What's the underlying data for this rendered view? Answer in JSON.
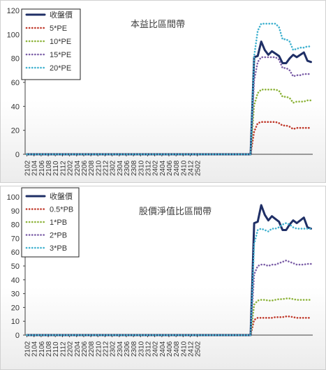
{
  "chart_data": [
    {
      "type": "line",
      "title": "本益比區間帶",
      "xlabel": "",
      "ylabel": "",
      "x_tick_labels": [
        "2102",
        "2104",
        "2106",
        "2108",
        "2110",
        "2112",
        "2202",
        "2204",
        "2206",
        "2208",
        "2210",
        "2212",
        "2302",
        "2304",
        "2306",
        "2308",
        "2310",
        "2312",
        "2402",
        "2404",
        "2406",
        "2408",
        "2410",
        "2412",
        "2502"
      ],
      "ylim": [
        0,
        120
      ],
      "yticks": [
        0,
        20,
        40,
        60,
        80,
        100,
        120
      ],
      "legend_position": "top-left",
      "grid": false,
      "series": [
        {
          "name": "收盤價",
          "color": "#1f2f66",
          "style": "solid",
          "values": [
            0,
            0,
            0,
            0,
            0,
            0,
            0,
            0,
            0,
            0,
            0,
            0,
            0,
            0,
            0,
            0,
            0,
            0,
            0,
            0,
            0,
            0,
            0,
            0,
            0,
            0,
            0,
            0,
            0,
            0,
            0,
            0,
            0,
            0,
            0,
            0,
            0,
            0,
            0,
            0,
            0,
            0,
            0,
            0,
            0,
            0,
            0,
            0,
            0,
            0,
            0,
            0,
            0,
            0,
            0,
            0,
            0,
            0,
            0,
            0,
            0,
            0,
            0,
            0,
            81,
            82,
            94,
            87,
            83,
            86,
            84,
            82,
            76,
            76,
            80,
            83,
            81,
            83,
            85,
            78,
            77
          ]
        },
        {
          "name": "5*PE",
          "color": "#c0392b",
          "style": "dotted",
          "values": [
            0,
            0,
            0,
            0,
            0,
            0,
            0,
            0,
            0,
            0,
            0,
            0,
            0,
            0,
            0,
            0,
            0,
            0,
            0,
            0,
            0,
            0,
            0,
            0,
            0,
            0,
            0,
            0,
            0,
            0,
            0,
            0,
            0,
            0,
            0,
            0,
            0,
            0,
            0,
            0,
            0,
            0,
            0,
            0,
            0,
            0,
            0,
            0,
            0,
            0,
            0,
            0,
            0,
            0,
            0,
            0,
            0,
            0,
            0,
            0,
            0,
            0,
            0,
            0,
            19,
            26,
            27,
            27,
            27,
            27,
            27,
            26,
            24,
            24,
            23,
            21,
            22,
            22,
            22,
            22,
            22
          ]
        },
        {
          "name": "10*PE",
          "color": "#8db33a",
          "style": "dotted",
          "values": [
            0,
            0,
            0,
            0,
            0,
            0,
            0,
            0,
            0,
            0,
            0,
            0,
            0,
            0,
            0,
            0,
            0,
            0,
            0,
            0,
            0,
            0,
            0,
            0,
            0,
            0,
            0,
            0,
            0,
            0,
            0,
            0,
            0,
            0,
            0,
            0,
            0,
            0,
            0,
            0,
            0,
            0,
            0,
            0,
            0,
            0,
            0,
            0,
            0,
            0,
            0,
            0,
            0,
            0,
            0,
            0,
            0,
            0,
            0,
            0,
            0,
            0,
            0,
            0,
            41,
            51,
            54,
            54,
            54,
            54,
            54,
            53,
            48,
            48,
            47,
            43,
            44,
            44,
            44,
            45,
            45
          ]
        },
        {
          "name": "15*PE",
          "color": "#7b5ea7",
          "style": "dotted",
          "values": [
            0,
            0,
            0,
            0,
            0,
            0,
            0,
            0,
            0,
            0,
            0,
            0,
            0,
            0,
            0,
            0,
            0,
            0,
            0,
            0,
            0,
            0,
            0,
            0,
            0,
            0,
            0,
            0,
            0,
            0,
            0,
            0,
            0,
            0,
            0,
            0,
            0,
            0,
            0,
            0,
            0,
            0,
            0,
            0,
            0,
            0,
            0,
            0,
            0,
            0,
            0,
            0,
            0,
            0,
            0,
            0,
            0,
            0,
            0,
            0,
            0,
            0,
            0,
            0,
            62,
            77,
            81,
            81,
            81,
            81,
            81,
            79,
            72,
            72,
            70,
            65,
            66,
            66,
            67,
            67,
            67
          ]
        },
        {
          "name": "20*PE",
          "color": "#3fb1cf",
          "style": "dotted",
          "values": [
            0,
            0,
            0,
            0,
            0,
            0,
            0,
            0,
            0,
            0,
            0,
            0,
            0,
            0,
            0,
            0,
            0,
            0,
            0,
            0,
            0,
            0,
            0,
            0,
            0,
            0,
            0,
            0,
            0,
            0,
            0,
            0,
            0,
            0,
            0,
            0,
            0,
            0,
            0,
            0,
            0,
            0,
            0,
            0,
            0,
            0,
            0,
            0,
            0,
            0,
            0,
            0,
            0,
            0,
            0,
            0,
            0,
            0,
            0,
            0,
            0,
            0,
            0,
            0,
            82,
            103,
            109,
            109,
            109,
            109,
            109,
            106,
            96,
            96,
            94,
            87,
            88,
            89,
            89,
            90,
            90
          ]
        }
      ]
    },
    {
      "type": "line",
      "title": "股價淨值比區間帶",
      "xlabel": "",
      "ylabel": "",
      "x_tick_labels": [
        "2102",
        "2104",
        "2106",
        "2108",
        "2110",
        "2112",
        "2202",
        "2204",
        "2206",
        "2208",
        "2210",
        "2212",
        "2302",
        "2304",
        "2306",
        "2308",
        "2310",
        "2312",
        "2402",
        "2404",
        "2406",
        "2408",
        "2410",
        "2412",
        "2502"
      ],
      "ylim": [
        0,
        100
      ],
      "yticks": [
        0,
        10,
        20,
        30,
        40,
        50,
        60,
        70,
        80,
        90,
        100
      ],
      "legend_position": "top-left",
      "grid": false,
      "series": [
        {
          "name": "收盤價",
          "color": "#1f2f66",
          "style": "solid",
          "values": [
            0,
            0,
            0,
            0,
            0,
            0,
            0,
            0,
            0,
            0,
            0,
            0,
            0,
            0,
            0,
            0,
            0,
            0,
            0,
            0,
            0,
            0,
            0,
            0,
            0,
            0,
            0,
            0,
            0,
            0,
            0,
            0,
            0,
            0,
            0,
            0,
            0,
            0,
            0,
            0,
            0,
            0,
            0,
            0,
            0,
            0,
            0,
            0,
            0,
            0,
            0,
            0,
            0,
            0,
            0,
            0,
            0,
            0,
            0,
            0,
            0,
            0,
            0,
            0,
            81,
            82,
            94,
            87,
            83,
            86,
            84,
            82,
            76,
            76,
            80,
            83,
            81,
            83,
            85,
            78,
            77
          ]
        },
        {
          "name": "0.5*PB",
          "color": "#c0392b",
          "style": "dotted",
          "values": [
            0,
            0,
            0,
            0,
            0,
            0,
            0,
            0,
            0,
            0,
            0,
            0,
            0,
            0,
            0,
            0,
            0,
            0,
            0,
            0,
            0,
            0,
            0,
            0,
            0,
            0,
            0,
            0,
            0,
            0,
            0,
            0,
            0,
            0,
            0,
            0,
            0,
            0,
            0,
            0,
            0,
            0,
            0,
            0,
            0,
            0,
            0,
            0,
            0,
            0,
            0,
            0,
            0,
            0,
            0,
            0,
            0,
            0,
            0,
            0,
            0,
            0,
            0,
            0,
            11,
            12.5,
            12.5,
            12.5,
            12.5,
            12.5,
            13,
            13,
            13,
            13.5,
            13.5,
            13,
            12.5,
            12.5,
            12.5,
            12.5,
            12.5
          ]
        },
        {
          "name": "1*PB",
          "color": "#8db33a",
          "style": "dotted",
          "values": [
            0,
            0,
            0,
            0,
            0,
            0,
            0,
            0,
            0,
            0,
            0,
            0,
            0,
            0,
            0,
            0,
            0,
            0,
            0,
            0,
            0,
            0,
            0,
            0,
            0,
            0,
            0,
            0,
            0,
            0,
            0,
            0,
            0,
            0,
            0,
            0,
            0,
            0,
            0,
            0,
            0,
            0,
            0,
            0,
            0,
            0,
            0,
            0,
            0,
            0,
            0,
            0,
            0,
            0,
            0,
            0,
            0,
            0,
            0,
            0,
            0,
            0,
            0,
            0,
            22,
            25,
            25.5,
            25.5,
            25,
            25,
            25.5,
            26,
            26,
            26.5,
            26.5,
            26,
            25.5,
            25.5,
            25.5,
            25.5,
            25.5
          ]
        },
        {
          "name": "2*PB",
          "color": "#7b5ea7",
          "style": "dotted",
          "values": [
            0,
            0,
            0,
            0,
            0,
            0,
            0,
            0,
            0,
            0,
            0,
            0,
            0,
            0,
            0,
            0,
            0,
            0,
            0,
            0,
            0,
            0,
            0,
            0,
            0,
            0,
            0,
            0,
            0,
            0,
            0,
            0,
            0,
            0,
            0,
            0,
            0,
            0,
            0,
            0,
            0,
            0,
            0,
            0,
            0,
            0,
            0,
            0,
            0,
            0,
            0,
            0,
            0,
            0,
            0,
            0,
            0,
            0,
            0,
            0,
            0,
            0,
            0,
            0,
            44,
            50,
            51,
            51,
            50,
            51,
            51,
            52,
            53,
            54,
            53,
            52,
            51,
            51,
            51,
            51.5,
            51.5
          ]
        },
        {
          "name": "3*PB",
          "color": "#3fb1cf",
          "style": "dotted",
          "values": [
            0,
            0,
            0,
            0,
            0,
            0,
            0,
            0,
            0,
            0,
            0,
            0,
            0,
            0,
            0,
            0,
            0,
            0,
            0,
            0,
            0,
            0,
            0,
            0,
            0,
            0,
            0,
            0,
            0,
            0,
            0,
            0,
            0,
            0,
            0,
            0,
            0,
            0,
            0,
            0,
            0,
            0,
            0,
            0,
            0,
            0,
            0,
            0,
            0,
            0,
            0,
            0,
            0,
            0,
            0,
            0,
            0,
            0,
            0,
            0,
            0,
            0,
            0,
            0,
            66,
            76,
            77,
            76,
            75,
            77,
            77,
            78,
            80,
            81,
            80,
            78,
            77,
            77,
            77,
            77,
            77
          ]
        }
      ]
    }
  ]
}
